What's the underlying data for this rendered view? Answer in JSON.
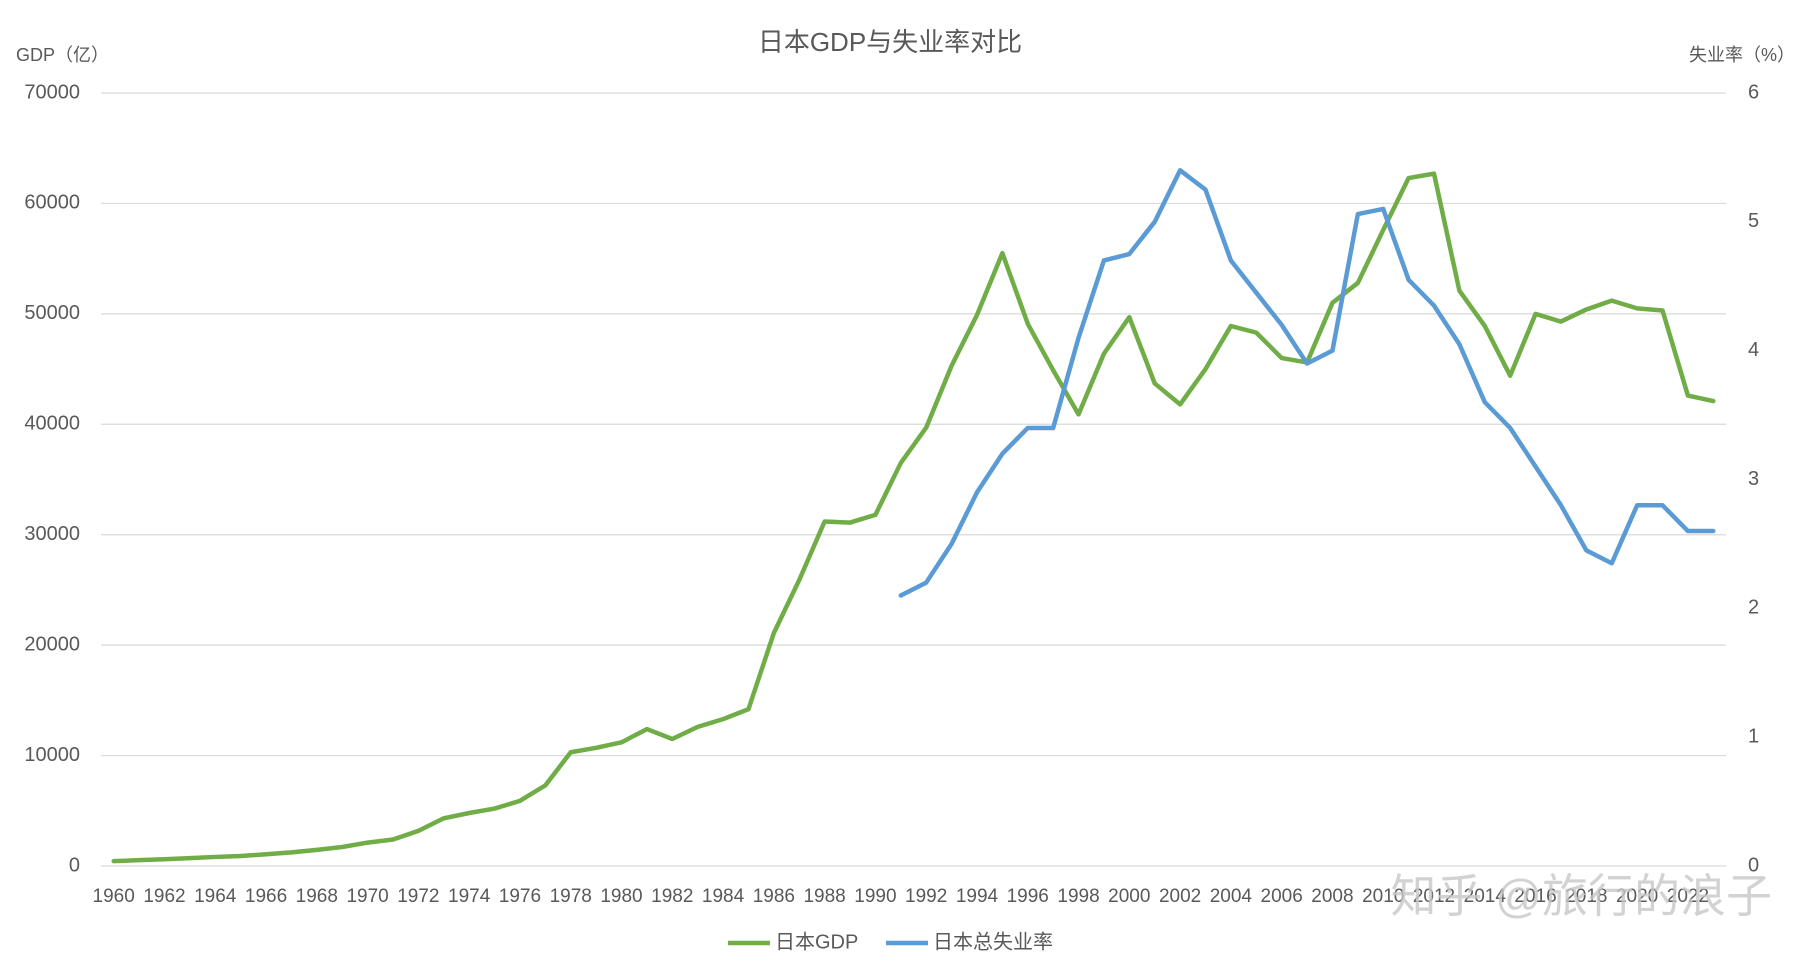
{
  "chart_data": {
    "type": "line",
    "title": "日本GDP与失业率对比",
    "y_label": "GDP（亿）",
    "y2_label": "失业率（%）",
    "watermark": "知乎 @旅行的浪子",
    "categories": [
      "1960",
      null,
      "1962",
      null,
      "1964",
      null,
      "1966",
      null,
      "1968",
      null,
      "1970",
      null,
      "1972",
      null,
      "1974",
      null,
      "1976",
      null,
      "1978",
      null,
      "1980",
      null,
      "1982",
      null,
      "1984",
      null,
      "1986",
      null,
      "1988",
      null,
      "1990",
      null,
      "1992",
      null,
      "1994",
      null,
      "1996",
      null,
      "1998",
      null,
      "2000",
      null,
      "2002",
      null,
      "2004",
      null,
      "2006",
      null,
      "2008",
      null,
      "2010",
      null,
      "2012",
      null,
      "2014",
      null,
      "2016",
      null,
      "2018",
      null,
      "2020",
      null,
      "2022",
      null
    ],
    "series": [
      {
        "name": "日本GDP",
        "color": "#70ad47",
        "axis": "y",
        "values": [
          440,
          530,
          610,
          710,
          820,
          910,
          1060,
          1230,
          1460,
          1720,
          2120,
          2400,
          3180,
          4320,
          4800,
          5200,
          5900,
          7300,
          10300,
          10700,
          11200,
          12400,
          11500,
          12600,
          13300,
          14200,
          21100,
          25900,
          31200,
          31100,
          31800,
          36500,
          39700,
          45300,
          49900,
          55500,
          49100,
          44900,
          40900,
          46400,
          49700,
          43700,
          41800,
          45000,
          48900,
          48300,
          46000,
          45600,
          51000,
          52800,
          57600,
          62300,
          62700,
          52100,
          48900,
          44400,
          50000,
          49300,
          50400,
          51200,
          50500,
          50300,
          42600,
          42100
        ]
      },
      {
        "name": "日本总失业率",
        "color": "#5b9bd5",
        "axis": "y2",
        "values": [
          null,
          null,
          null,
          null,
          null,
          null,
          null,
          null,
          null,
          null,
          null,
          null,
          null,
          null,
          null,
          null,
          null,
          null,
          null,
          null,
          null,
          null,
          null,
          null,
          null,
          null,
          null,
          null,
          null,
          null,
          null,
          2.1,
          2.2,
          2.5,
          2.9,
          3.2,
          3.4,
          3.4,
          4.1,
          4.7,
          4.75,
          5.0,
          5.4,
          5.25,
          4.7,
          4.45,
          4.2,
          3.9,
          4.0,
          5.06,
          5.1,
          4.55,
          4.35,
          4.05,
          3.6,
          3.4,
          3.1,
          2.8,
          2.45,
          2.35,
          2.8,
          2.8,
          2.6,
          2.6
        ]
      }
    ],
    "ylim": [
      0,
      70000
    ],
    "yticks": [
      0,
      10000,
      20000,
      30000,
      40000,
      50000,
      60000,
      70000
    ],
    "y2lim": [
      0,
      6
    ],
    "y2ticks": [
      0,
      1,
      2,
      3,
      4,
      5,
      6
    ],
    "grid": true,
    "legend": "bottom"
  }
}
